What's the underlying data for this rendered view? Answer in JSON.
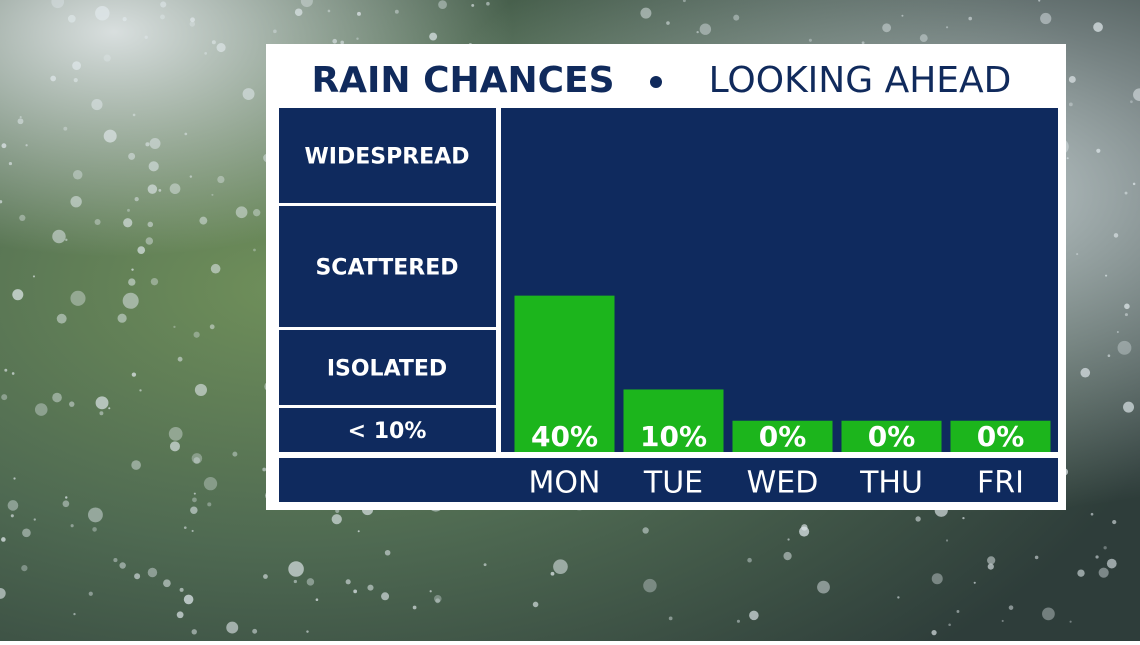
{
  "chart_data": {
    "type": "bar",
    "title": "RAIN CHANCES",
    "subtitle": "LOOKING AHEAD",
    "levels": [
      "WIDESPREAD",
      "SCATTERED",
      "ISOLATED",
      "< 10%"
    ],
    "categories": [
      "MON",
      "TUE",
      "WED",
      "THU",
      "FRI"
    ],
    "values": [
      40,
      10,
      0,
      0,
      0
    ],
    "value_labels": [
      "40%",
      "10%",
      "0%",
      "0%",
      "0%"
    ],
    "color": "#1cb51c",
    "ylim": [
      -10,
      100
    ]
  }
}
